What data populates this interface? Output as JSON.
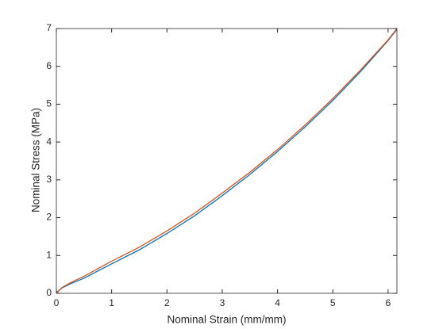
{
  "chart_data": {
    "type": "line",
    "xlabel": "Nominal Strain (mm/mm)",
    "ylabel": "Nominal Stress (MPa)",
    "x": [
      0,
      0.1,
      0.25,
      0.5,
      1,
      1.5,
      2,
      2.5,
      3,
      3.5,
      4,
      4.5,
      5,
      5.5,
      6,
      6.16
    ],
    "series": [
      {
        "color": "#0072bd",
        "values": [
          0.02,
          0.14,
          0.25,
          0.4,
          0.78,
          1.15,
          1.58,
          2.05,
          2.58,
          3.14,
          3.75,
          4.4,
          5.1,
          5.86,
          6.68,
          6.98
        ]
      },
      {
        "color": "#d95319",
        "values": [
          0,
          0.15,
          0.28,
          0.45,
          0.85,
          1.22,
          1.65,
          2.12,
          2.65,
          3.2,
          3.8,
          4.45,
          5.15,
          5.9,
          6.7,
          7
        ]
      }
    ],
    "xlim": [
      0,
      6.16
    ],
    "ylim": [
      0,
      7
    ],
    "xticks": [
      0,
      1,
      2,
      3,
      4,
      5,
      6
    ],
    "yticks": [
      0,
      1,
      2,
      3,
      4,
      5,
      6,
      7
    ]
  }
}
